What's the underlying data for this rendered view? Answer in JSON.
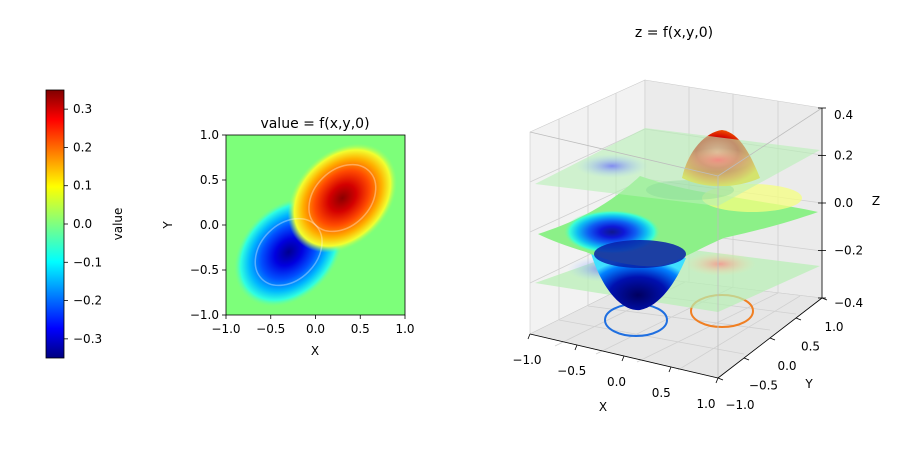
{
  "chart_data": [
    {
      "type": "heatmap",
      "title": "value = f(x,y,0)",
      "xlabel": "X",
      "ylabel": "Y",
      "xlim": [
        -1.0,
        1.0
      ],
      "ylim": [
        -1.0,
        1.0
      ],
      "xticks": [
        "−1.0",
        "−0.5",
        "0.0",
        "0.5",
        "1.0"
      ],
      "yticks": [
        "−1.0",
        "−0.5",
        "0.0",
        "0.5",
        "1.0"
      ],
      "colormap": "jet",
      "vmin": -0.35,
      "vmax": 0.35,
      "features": [
        {
          "kind": "minimum",
          "x": -0.3,
          "y": -0.3,
          "value": -0.35
        },
        {
          "kind": "maximum",
          "x": 0.3,
          "y": 0.3,
          "value": 0.35
        }
      ],
      "contours": [
        {
          "level": -0.2,
          "cx": -0.3,
          "cy": -0.3
        },
        {
          "level": 0.2,
          "cx": 0.3,
          "cy": 0.3
        }
      ],
      "colorbar": {
        "label": "value",
        "ticks": [
          "−0.3",
          "−0.2",
          "−0.1",
          "0.0",
          "0.1",
          "0.2",
          "0.3"
        ]
      }
    },
    {
      "type": "surface3d",
      "title": "z = f(x,y,0)",
      "xlabel": "X",
      "ylabel": "Y",
      "zlabel": "Z",
      "xlim": [
        -1.0,
        1.0
      ],
      "ylim": [
        -1.0,
        1.0
      ],
      "zlim": [
        -0.4,
        0.4
      ],
      "xticks": [
        "−1.0",
        "−0.5",
        "0.0",
        "0.5",
        "1.0"
      ],
      "yticks": [
        "−1.0",
        "−0.5",
        "0.0",
        "0.5",
        "1.0"
      ],
      "zticks": [
        "−0.4",
        "−0.2",
        "0.0",
        "0.2",
        "0.4"
      ],
      "slice_planes_z": [
        -0.2,
        0.2
      ],
      "peak": {
        "x": 0.3,
        "y": 0.3,
        "z": 0.35
      },
      "trough": {
        "x": -0.3,
        "y": -0.3,
        "z": -0.35
      },
      "floor_contours": [
        {
          "level": -0.2,
          "color": "#1f6fe0"
        },
        {
          "level": 0.2,
          "color": "#f07f22"
        }
      ]
    }
  ]
}
